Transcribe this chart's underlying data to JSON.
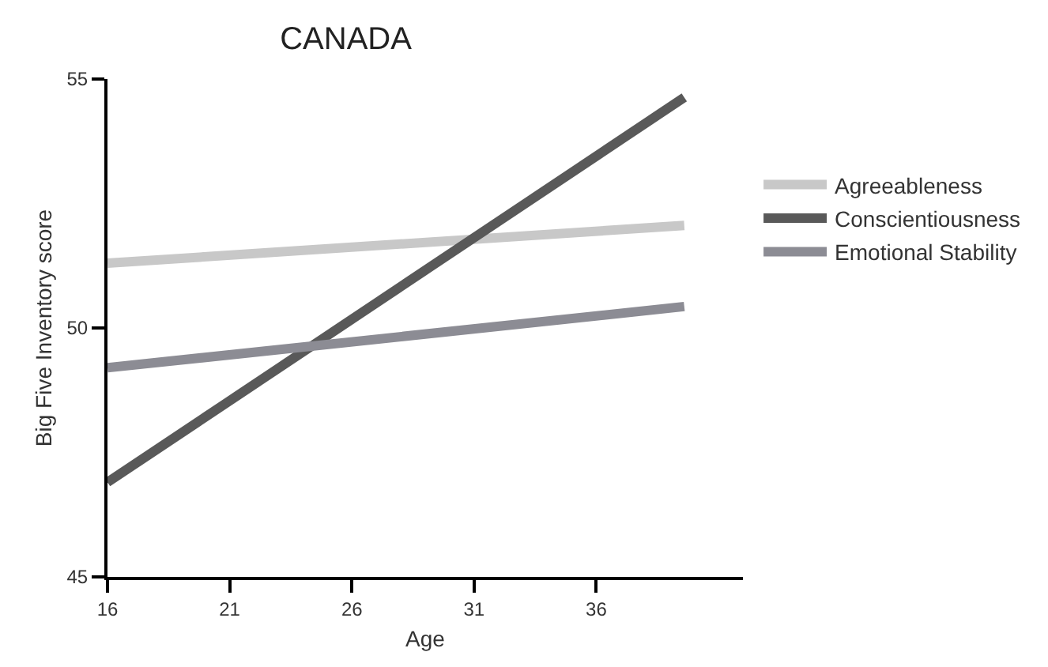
{
  "chart_data": {
    "type": "line",
    "title": "CANADA",
    "xlabel": "Age",
    "ylabel": "Big Five Inventory score",
    "x": [
      16,
      39.6
    ],
    "series": [
      {
        "name": "Agreeableness",
        "color": "#c8c8c8",
        "values": [
          51.3,
          52.06
        ]
      },
      {
        "name": "Conscientiousness",
        "color": "#595959",
        "values": [
          46.9,
          54.63
        ]
      },
      {
        "name": "Emotional Stability",
        "color": "#8c8c94",
        "values": [
          49.2,
          50.43
        ]
      }
    ],
    "xlim": [
      16,
      42
    ],
    "xticks": [
      16,
      21,
      26,
      31,
      36
    ],
    "ylim": [
      45,
      55
    ],
    "yticks": [
      45,
      50,
      55
    ],
    "legend": "right",
    "marker": "none",
    "line_style": "solid"
  }
}
